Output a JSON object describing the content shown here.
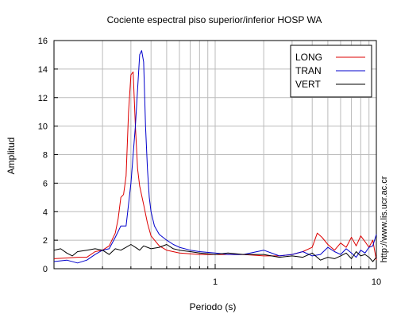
{
  "chart_data": {
    "type": "line",
    "title": "Cociente espectral piso superior/inferior  HOSP WA",
    "xlabel": "Periodo (s)",
    "ylabel": "Amplitud",
    "xscale": "log",
    "xlim": [
      0.1,
      10
    ],
    "ylim": [
      0,
      16
    ],
    "xticks": [
      1,
      10
    ],
    "yticks": [
      0,
      2,
      4,
      6,
      8,
      10,
      12,
      14,
      16
    ],
    "grid": true,
    "legend_position": "top-right",
    "side_note": "http://www.lis.ucr.ac.cr",
    "series": [
      {
        "name": "LONG",
        "color": "#dd0000",
        "x": [
          0.1,
          0.12,
          0.14,
          0.16,
          0.18,
          0.2,
          0.22,
          0.24,
          0.25,
          0.26,
          0.27,
          0.28,
          0.29,
          0.3,
          0.31,
          0.32,
          0.33,
          0.34,
          0.36,
          0.38,
          0.4,
          0.45,
          0.5,
          0.6,
          0.7,
          0.8,
          1.0,
          1.2,
          1.5,
          2.0,
          2.5,
          3.0,
          3.5,
          4.0,
          4.3,
          4.6,
          5.0,
          5.5,
          6.0,
          6.5,
          7.0,
          7.5,
          8.0,
          8.5,
          9.0,
          9.5,
          10.0
        ],
        "y": [
          0.7,
          0.75,
          0.8,
          0.8,
          1.2,
          1.3,
          1.6,
          2.5,
          3.5,
          5.0,
          5.2,
          6.5,
          11.0,
          13.6,
          13.8,
          10.0,
          7.0,
          5.8,
          4.5,
          3.2,
          2.3,
          1.6,
          1.3,
          1.1,
          1.05,
          1.0,
          1.0,
          1.0,
          1.0,
          0.9,
          0.9,
          1.0,
          1.2,
          1.5,
          2.5,
          2.2,
          1.7,
          1.3,
          1.8,
          1.5,
          2.2,
          1.6,
          2.3,
          1.9,
          1.5,
          2.0,
          0.6
        ]
      },
      {
        "name": "TRAN",
        "color": "#0000cc",
        "x": [
          0.1,
          0.12,
          0.14,
          0.16,
          0.18,
          0.2,
          0.22,
          0.24,
          0.26,
          0.28,
          0.3,
          0.32,
          0.34,
          0.35,
          0.36,
          0.37,
          0.38,
          0.39,
          0.4,
          0.42,
          0.45,
          0.5,
          0.55,
          0.6,
          0.7,
          0.8,
          1.0,
          1.2,
          1.5,
          2.0,
          2.5,
          3.0,
          3.5,
          4.0,
          4.5,
          5.0,
          5.5,
          6.0,
          6.5,
          7.0,
          7.5,
          8.0,
          8.5,
          9.0,
          9.5,
          10.0
        ],
        "y": [
          0.5,
          0.6,
          0.4,
          0.6,
          1.0,
          1.3,
          1.4,
          2.2,
          3.0,
          3.0,
          6.0,
          10.0,
          15.0,
          15.3,
          14.5,
          10.0,
          7.0,
          5.0,
          4.0,
          3.0,
          2.4,
          2.0,
          1.7,
          1.5,
          1.3,
          1.2,
          1.1,
          1.0,
          1.0,
          1.3,
          0.9,
          1.0,
          1.2,
          0.9,
          1.0,
          1.5,
          1.2,
          1.0,
          1.4,
          1.1,
          0.8,
          1.3,
          1.1,
          1.5,
          1.6,
          2.4
        ]
      },
      {
        "name": "VERT",
        "color": "#000000",
        "x": [
          0.1,
          0.11,
          0.12,
          0.13,
          0.14,
          0.16,
          0.18,
          0.2,
          0.22,
          0.24,
          0.26,
          0.28,
          0.3,
          0.32,
          0.34,
          0.36,
          0.38,
          0.4,
          0.45,
          0.5,
          0.55,
          0.6,
          0.7,
          0.8,
          1.0,
          1.2,
          1.5,
          2.0,
          2.5,
          3.0,
          3.5,
          4.0,
          4.5,
          5.0,
          5.5,
          6.0,
          6.5,
          7.0,
          7.5,
          8.0,
          8.5,
          9.0,
          9.5,
          10.0
        ],
        "y": [
          1.3,
          1.4,
          1.1,
          0.9,
          1.2,
          1.3,
          1.4,
          1.3,
          1.0,
          1.4,
          1.3,
          1.5,
          1.7,
          1.5,
          1.3,
          1.6,
          1.5,
          1.4,
          1.5,
          1.7,
          1.4,
          1.3,
          1.2,
          1.1,
          1.0,
          1.1,
          1.0,
          1.0,
          0.8,
          0.9,
          0.8,
          1.1,
          0.6,
          0.8,
          0.7,
          0.9,
          1.1,
          0.7,
          1.2,
          0.9,
          1.0,
          0.8,
          0.5,
          0.8
        ]
      }
    ]
  }
}
